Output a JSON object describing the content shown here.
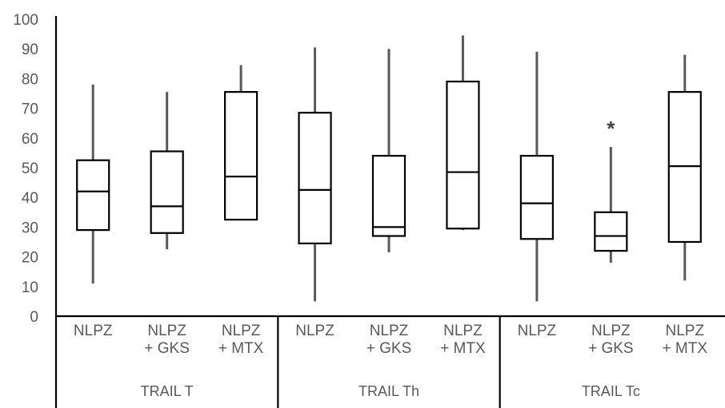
{
  "chart_data": {
    "type": "boxplot",
    "title": "",
    "xlabel": "",
    "ylabel": "",
    "ylim": [
      0,
      100
    ],
    "yticks": [
      0,
      10,
      20,
      30,
      40,
      50,
      60,
      70,
      80,
      90,
      100
    ],
    "grid": false,
    "legend": "none",
    "colors": {
      "box_stroke": "#000000",
      "whisker": "#595959",
      "text": "#595959"
    },
    "groups": [
      {
        "label": "TRAIL T",
        "boxes": [
          {
            "category": [
              "NLPZ"
            ],
            "min": 11,
            "q1": 29,
            "median": 42,
            "q3": 52.5,
            "max": 78
          },
          {
            "category": [
              "NLPZ",
              "+ GKS"
            ],
            "min": 22.5,
            "q1": 28,
            "median": 37,
            "q3": 55.5,
            "max": 75.5
          },
          {
            "category": [
              "NLPZ",
              "+ MTX"
            ],
            "min": 32.5,
            "q1": 32.5,
            "median": 47,
            "q3": 75.5,
            "max": 84.5
          }
        ]
      },
      {
        "label": "TRAIL Th",
        "boxes": [
          {
            "category": [
              "NLPZ"
            ],
            "min": 5,
            "q1": 24.5,
            "median": 42.5,
            "q3": 68.5,
            "max": 90.5
          },
          {
            "category": [
              "NLPZ",
              "+ GKS"
            ],
            "min": 21.5,
            "q1": 27,
            "median": 30,
            "q3": 54,
            "max": 90
          },
          {
            "category": [
              "NLPZ",
              "+ MTX"
            ],
            "min": 29,
            "q1": 29.5,
            "median": 48.5,
            "q3": 79,
            "max": 94.5
          }
        ]
      },
      {
        "label": "TRAIL Tc",
        "boxes": [
          {
            "category": [
              "NLPZ"
            ],
            "min": 5,
            "q1": 26,
            "median": 38,
            "q3": 54,
            "max": 89
          },
          {
            "category": [
              "NLPZ",
              "+ GKS"
            ],
            "min": 18,
            "q1": 22,
            "median": 27,
            "q3": 35,
            "max": 57,
            "annotation": "*"
          },
          {
            "category": [
              "NLPZ",
              "+ MTX"
            ],
            "min": 12,
            "q1": 25,
            "median": 50.5,
            "q3": 75.5,
            "max": 88
          }
        ]
      }
    ]
  }
}
